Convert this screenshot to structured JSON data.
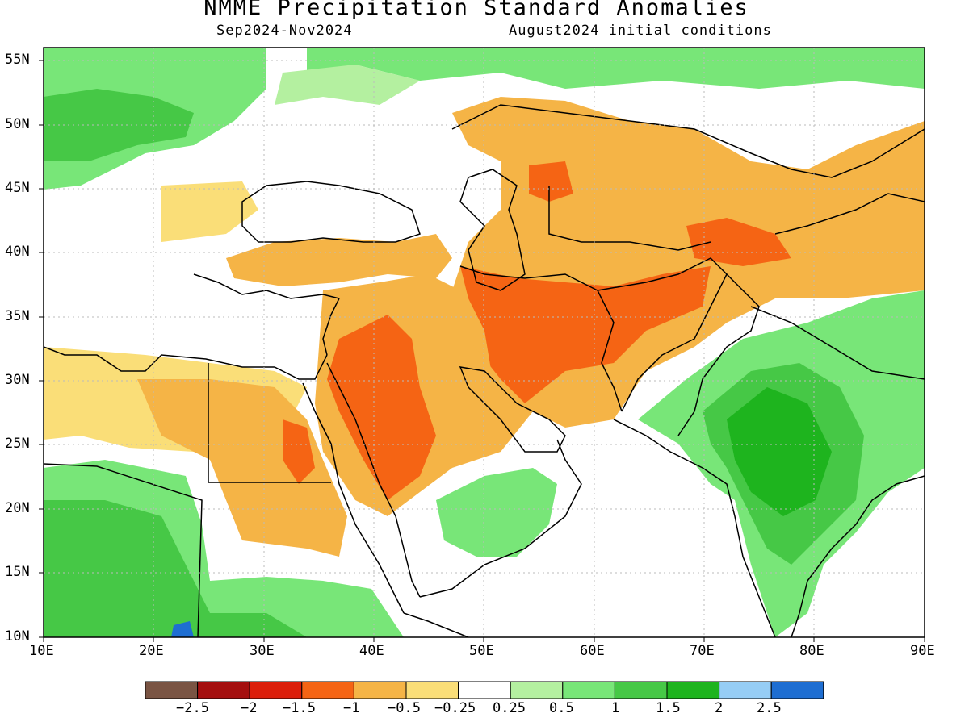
{
  "title": "NMME Precipitation Standard Anomalies",
  "period": "Sep2024-Nov2024",
  "initial_conditions": "August2024 initial conditions",
  "lat_labels": [
    "55N",
    "50N",
    "45N",
    "40N",
    "35N",
    "30N",
    "25N",
    "20N",
    "15N",
    "10N"
  ],
  "lon_labels": [
    "10E",
    "20E",
    "30E",
    "40E",
    "50E",
    "60E",
    "70E",
    "80E",
    "90E"
  ],
  "legend": {
    "labels": [
      "−2.5",
      "−2",
      "−1.5",
      "−1",
      "−0.5",
      "−0.25",
      "0.25",
      "0.5",
      "1",
      "1.5",
      "2",
      "2.5"
    ],
    "colors": [
      "#7a5443",
      "#a50f0f",
      "#dc1e0a",
      "#f56414",
      "#f5b446",
      "#fade78",
      "#ffffff",
      "#b4f0a0",
      "#78e678",
      "#46c846",
      "#1eb41e",
      "#96cdf5",
      "#1e6ed2"
    ]
  },
  "map": {
    "land_outline": "#000000",
    "gridline": "#bbbbbb"
  }
}
